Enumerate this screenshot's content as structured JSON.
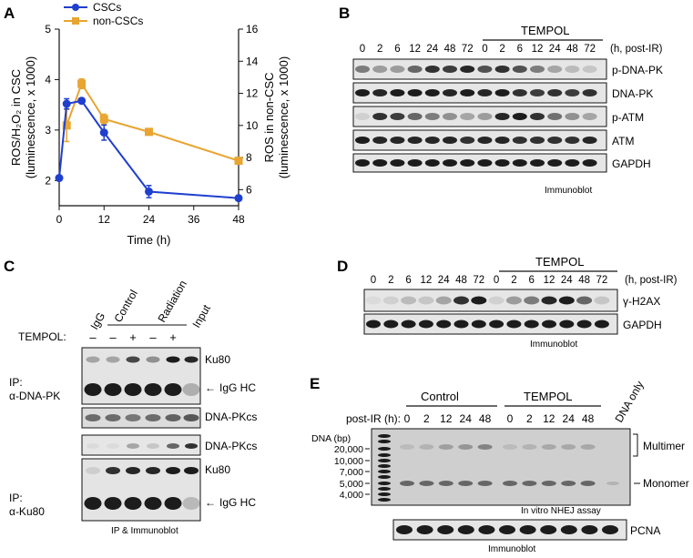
{
  "panels": {
    "A": {
      "letter": "A",
      "chart_data": {
        "type": "line",
        "x": [
          0,
          2,
          6,
          12,
          24,
          48
        ],
        "xlabel": "Time (h)",
        "xticks": [
          "0",
          "12",
          "24",
          "36",
          "48"
        ],
        "xlim": [
          0,
          48
        ],
        "ylabel_left": [
          "ROS/H₂O₂ in CSC",
          "(luminescence, x 1000)"
        ],
        "ylabel_right": [
          "ROS in non-CSC",
          "(luminescence, x 1000)"
        ],
        "ylim_left": [
          1.5,
          5
        ],
        "yticks_left": [
          "2",
          "3",
          "4",
          "5"
        ],
        "ylim_right": [
          5,
          16
        ],
        "yticks_right": [
          "6",
          "8",
          "10",
          "12",
          "14",
          "16"
        ],
        "series": [
          {
            "name": "CSCs",
            "axis": "left",
            "color": "#1f3fcf",
            "x": [
              0,
              2,
              6,
              12,
              24,
              48
            ],
            "values": [
              2.05,
              3.52,
              3.58,
              2.95,
              1.78,
              1.65
            ],
            "errors": [
              0.03,
              0.1,
              0.05,
              0.15,
              0.12,
              0.03
            ]
          },
          {
            "name": "non-CSCs",
            "axis": "right",
            "color": "#e8a531",
            "x": [
              2,
              6,
              12,
              24,
              48
            ],
            "values": [
              10.0,
              12.6,
              10.4,
              9.6,
              7.8
            ],
            "errors": [
              1.0,
              0.3,
              0.3,
              0.15,
              0.15
            ]
          }
        ]
      }
    },
    "B": {
      "letter": "B",
      "tempol": "TEMPOL",
      "lanes": [
        "0",
        "2",
        "6",
        "12",
        "24",
        "48",
        "72",
        "0",
        "2",
        "6",
        "12",
        "24",
        "48",
        "72"
      ],
      "unit": "(h, post-IR)",
      "bands": [
        "p-DNA-PK",
        "DNA-PK",
        "p-ATM",
        "ATM",
        "GAPDH"
      ],
      "footer": "Immunoblot"
    },
    "C": {
      "letter": "C",
      "columns": [
        "IgG",
        "Control",
        "Radiation",
        "Input"
      ],
      "tempol_label": "TEMPOL:",
      "tempol_signs": [
        "–",
        "–",
        "+",
        "–",
        "+"
      ],
      "ip1": [
        "IP:",
        "α-DNA-PK"
      ],
      "ip2": [
        "IP:",
        "α-Ku80"
      ],
      "labels_top": [
        "Ku80",
        "IgG HC"
      ],
      "label_mid": "DNA-PKcs",
      "labels_bottom": [
        "DNA-PKcs",
        "Ku80",
        "IgG HC"
      ],
      "footer": "IP & Immunoblot"
    },
    "D": {
      "letter": "D",
      "tempol": "TEMPOL",
      "lanes": [
        "0",
        "2",
        "6",
        "12",
        "24",
        "48",
        "72",
        "0",
        "2",
        "6",
        "12",
        "24",
        "48",
        "72"
      ],
      "unit": "(h, post-IR)",
      "bands": [
        "γ-H2AX",
        "GAPDH"
      ],
      "footer": "Immunoblot"
    },
    "E": {
      "letter": "E",
      "control": "Control",
      "tempol": "TEMPOL",
      "dna_only": "DNA only",
      "post_ir": "post-IR (h):",
      "lanes": [
        "0",
        "2",
        "12",
        "24",
        "48",
        "0",
        "2",
        "12",
        "24",
        "48"
      ],
      "dna_bp": "DNA (bp)",
      "ladder": [
        "20,000",
        "10,000",
        "7,000",
        "5,000",
        "4,000"
      ],
      "multimer": "Multimer",
      "monomer": "Monomer",
      "assay": "In vitro NHEJ assay",
      "pcna": "PCNA",
      "footer": "Immunoblot"
    }
  }
}
